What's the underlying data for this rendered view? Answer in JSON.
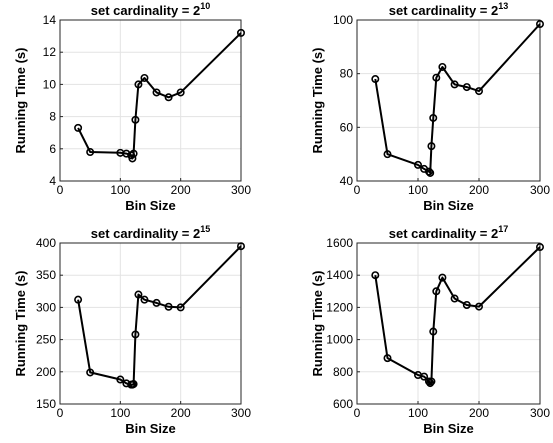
{
  "chart_data": [
    {
      "type": "line",
      "title": "set cardinality = 2",
      "title_exponent": "10",
      "xlabel": "Bin Size",
      "ylabel": "Running Time (s)",
      "xlim": [
        0,
        300
      ],
      "ylim": [
        4,
        14
      ],
      "xticks": [
        0,
        100,
        200,
        300
      ],
      "yticks": [
        4,
        6,
        8,
        10,
        12,
        14
      ],
      "grid": true,
      "marker": "circle",
      "series": [
        {
          "x": [
            30,
            50,
            100,
            110,
            118,
            120,
            122,
            125,
            130,
            140,
            160,
            180,
            200,
            300
          ],
          "y": [
            7.3,
            5.8,
            5.75,
            5.7,
            5.6,
            5.4,
            5.7,
            7.8,
            10.0,
            10.4,
            9.5,
            9.2,
            9.5,
            13.2
          ]
        }
      ]
    },
    {
      "type": "line",
      "title": "set cardinality = 2",
      "title_exponent": "13",
      "xlabel": "Bin Size",
      "ylabel": "Running Time (s)",
      "xlim": [
        0,
        300
      ],
      "ylim": [
        40,
        100
      ],
      "xticks": [
        0,
        100,
        200,
        300
      ],
      "yticks": [
        40,
        60,
        80,
        100
      ],
      "grid": true,
      "marker": "circle",
      "series": [
        {
          "x": [
            30,
            50,
            100,
            110,
            118,
            120,
            122,
            125,
            130,
            140,
            160,
            180,
            200,
            300
          ],
          "y": [
            78,
            50,
            46,
            44.5,
            43.5,
            43,
            53,
            63.5,
            78.5,
            82.5,
            76,
            75,
            73.5,
            98.5
          ]
        }
      ]
    },
    {
      "type": "line",
      "title": "set cardinality = 2",
      "title_exponent": "15",
      "xlabel": "Bin Size",
      "ylabel": "Running Time (s)",
      "xlim": [
        0,
        300
      ],
      "ylim": [
        150,
        400
      ],
      "xticks": [
        0,
        100,
        200,
        300
      ],
      "yticks": [
        150,
        200,
        250,
        300,
        350,
        400
      ],
      "grid": true,
      "marker": "circle",
      "series": [
        {
          "x": [
            30,
            50,
            100,
            110,
            118,
            120,
            122,
            125,
            130,
            140,
            160,
            180,
            200,
            300
          ],
          "y": [
            312,
            199,
            188,
            182,
            180,
            180,
            181,
            258,
            320,
            312,
            307,
            301,
            300,
            395
          ]
        }
      ]
    },
    {
      "type": "line",
      "title": "set cardinality = 2",
      "title_exponent": "17",
      "xlabel": "Bin Size",
      "ylabel": "Running Time (s)",
      "xlim": [
        0,
        300
      ],
      "ylim": [
        600,
        1600
      ],
      "xticks": [
        0,
        100,
        200,
        300
      ],
      "yticks": [
        600,
        800,
        1000,
        1200,
        1400,
        1600
      ],
      "grid": true,
      "marker": "circle",
      "series": [
        {
          "x": [
            30,
            50,
            100,
            110,
            118,
            120,
            122,
            125,
            130,
            140,
            160,
            180,
            200,
            300
          ],
          "y": [
            1400,
            885,
            780,
            770,
            740,
            730,
            740,
            1050,
            1300,
            1385,
            1255,
            1215,
            1205,
            1575
          ]
        }
      ]
    }
  ]
}
